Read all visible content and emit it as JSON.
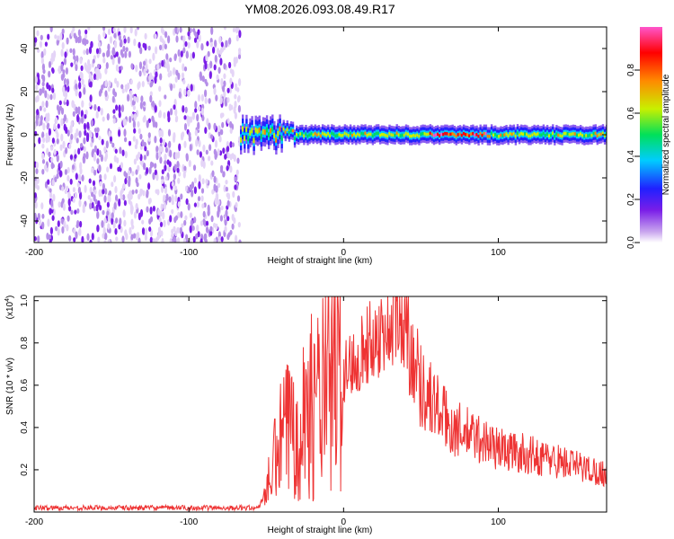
{
  "figure": {
    "title": "YM08.2026.093.08.49.R17"
  },
  "chart_data": [
    {
      "type": "heatmap",
      "xlabel": "Height of straight line (km)",
      "ylabel": "Frequency (Hz)",
      "xlim": [
        -200,
        170
      ],
      "ylim": [
        -50,
        50
      ],
      "x_ticks": [
        -200,
        -100,
        0,
        100
      ],
      "y_ticks": [
        -40,
        -20,
        0,
        20,
        40
      ],
      "colorbar": {
        "label": "Normalized spectral amplitude",
        "range": [
          0,
          1
        ],
        "ticks": [
          "0.0",
          "0.2",
          "0.4",
          "0.6",
          "0.8"
        ],
        "colormap": [
          "#ffffff",
          "#c9a6ee",
          "#7a1ee8",
          "#2020ff",
          "#00ccff",
          "#00e05a",
          "#c8f000",
          "#ff8a00",
          "#ff0000",
          "#ff55cc"
        ]
      },
      "regions": [
        {
          "x_range": [
            -200,
            -67
          ],
          "freq_range": [
            -50,
            50
          ],
          "description_value": "broadband noise",
          "amplitude_range": [
            0.0,
            0.15
          ]
        },
        {
          "x_range": [
            -67,
            170
          ],
          "freq_center": 0,
          "band_halfwidth_hz": 3,
          "amplitude_range": [
            0.2,
            1.0
          ]
        }
      ],
      "grid": false
    },
    {
      "type": "line",
      "xlabel": "Height of straight line (km)",
      "ylabel": "SNR (10 * v/v)",
      "y_multiplier": "(x10",
      "y_multiplier_exp": "4",
      "xlim": [
        -200,
        170
      ],
      "ylim": [
        0,
        1.02
      ],
      "x_ticks": [
        -200,
        -100,
        0,
        100
      ],
      "y_ticks": [
        "0.2",
        "0.4",
        "0.6",
        "0.8",
        "1.0"
      ],
      "series_color": "#ee3333",
      "envelope": {
        "x": [
          -200,
          -100,
          -55,
          -50,
          -40,
          -30,
          -20,
          -10,
          0,
          10,
          20,
          30,
          40,
          50,
          60,
          70,
          80,
          90,
          100,
          120,
          140,
          160,
          170
        ],
        "y": [
          0.02,
          0.02,
          0.02,
          0.1,
          0.35,
          0.45,
          0.5,
          0.58,
          0.65,
          0.75,
          0.82,
          0.88,
          0.9,
          0.6,
          0.5,
          0.4,
          0.37,
          0.34,
          0.3,
          0.27,
          0.24,
          0.2,
          0.18
        ]
      },
      "grid": false
    }
  ]
}
